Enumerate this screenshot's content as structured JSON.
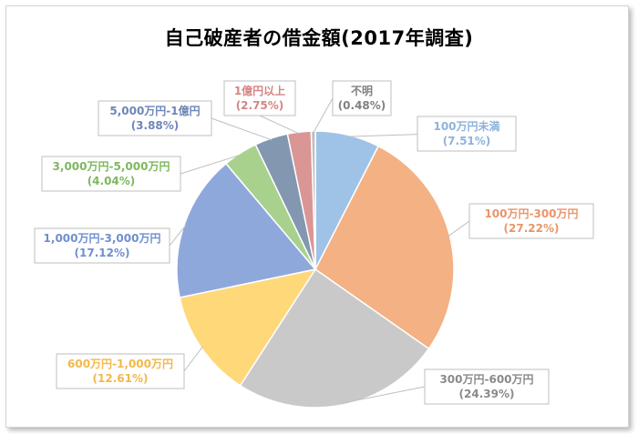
{
  "chart_data": {
    "type": "pie",
    "title": "自己破産者の借金額(2017年調査)",
    "slices": [
      {
        "label": "100万円未満",
        "pct_text": "(7.51%)",
        "value": 7.51,
        "color": "#9fc3e7",
        "text_color": "#8db3dc"
      },
      {
        "label": "100万円-300万円",
        "pct_text": "(27.22%)",
        "value": 27.22,
        "color": "#f4b183",
        "text_color": "#e8956b"
      },
      {
        "label": "300万円-600万円",
        "pct_text": "(24.39%)",
        "value": 24.39,
        "color": "#c9c9c9",
        "text_color": "#8a8a8a"
      },
      {
        "label": "600万円-1,000万円",
        "pct_text": "(12.61%)",
        "value": 12.61,
        "color": "#ffd87a",
        "text_color": "#f2b84b"
      },
      {
        "label": "1,000万円-3,000万円",
        "pct_text": "(17.12%)",
        "value": 17.12,
        "color": "#8fa8dc",
        "text_color": "#6f8fce"
      },
      {
        "label": "3,000万円-5,000万円",
        "pct_text": "(4.04%)",
        "value": 4.04,
        "color": "#a9d18e",
        "text_color": "#7fb75f"
      },
      {
        "label": "5,000万円-1億円",
        "pct_text": "(3.88%)",
        "value": 3.88,
        "color": "#8497b0",
        "text_color": "#6d86b8"
      },
      {
        "label": "1億円以上",
        "pct_text": "(2.75%)",
        "value": 2.75,
        "color": "#d99694",
        "text_color": "#d48583"
      },
      {
        "label": "不明",
        "pct_text": "(0.48%)",
        "value": 0.48,
        "color": "#bfbfbf",
        "text_color": "#808080"
      }
    ]
  }
}
